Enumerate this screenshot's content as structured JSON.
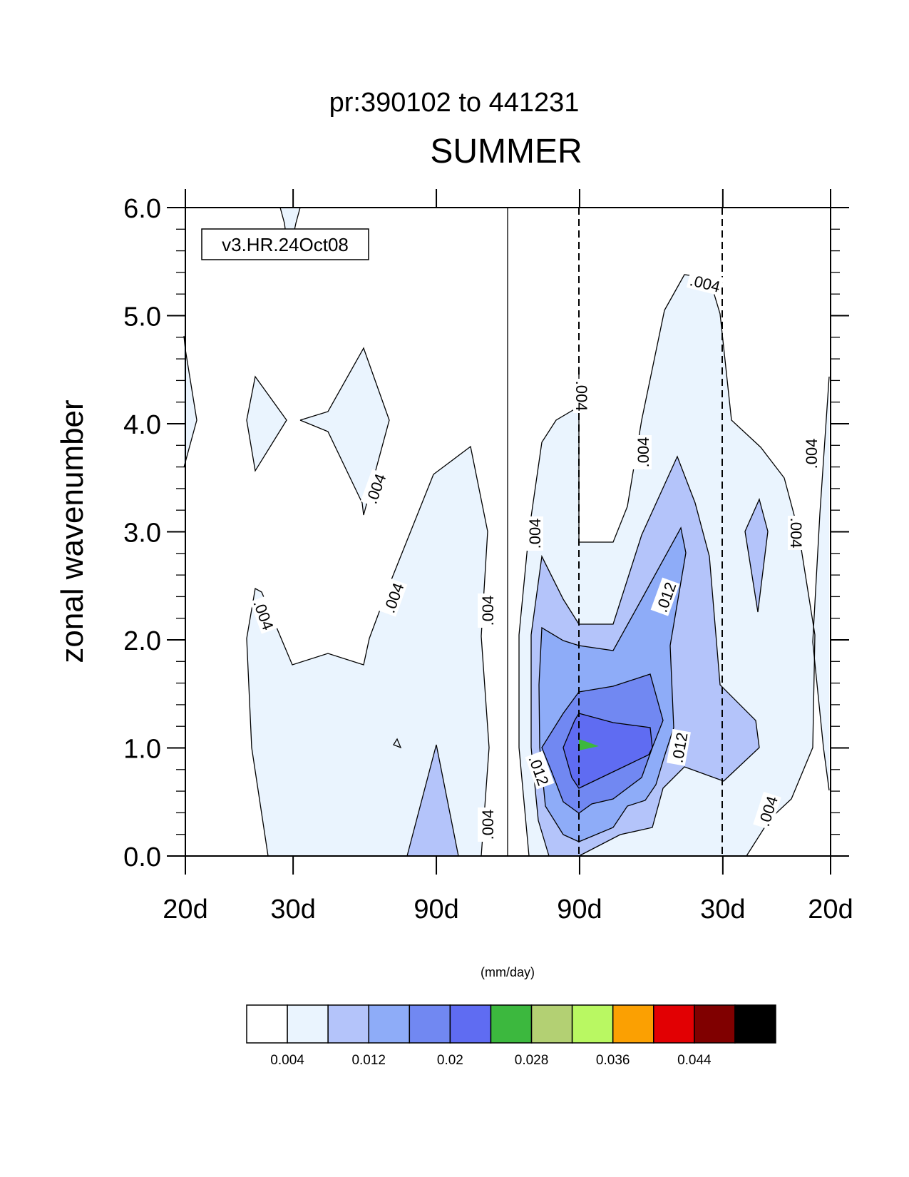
{
  "chart_data": {
    "type": "heatmap",
    "subtitle": "pr:390102 to 441231",
    "title": "SUMMER",
    "ylabel": "zonal wavenumber",
    "xlabel": "",
    "units": "(mm/day)",
    "run_label": "v3.HR.24Oct08",
    "ylim": [
      0,
      6
    ],
    "y_ticks": [
      "0.0",
      "1.0",
      "2.0",
      "3.0",
      "4.0",
      "5.0",
      "6.0"
    ],
    "x_ticks": [
      "20d",
      "30d",
      "90d",
      "90d",
      "30d",
      "20d"
    ],
    "x_frequency_range": [
      -0.05,
      0.05
    ],
    "x_tick_frequencies": [
      -0.05,
      -0.0333,
      -0.0111,
      0.0111,
      0.0333,
      0.05
    ],
    "contour_label": [
      ".004",
      ".012"
    ],
    "colorbar": {
      "levels": [
        "0.004",
        "0.012",
        "0.02",
        "0.028",
        "0.036",
        "0.044"
      ],
      "colors": [
        "#ffffff",
        "#eaf4fe",
        "#b4c4fa",
        "#8eacf8",
        "#7188f2",
        "#5f6cf2",
        "#3cb83e",
        "#b3d073",
        "#b9f862",
        "#fba002",
        "#e20003",
        "#800000",
        "#000000"
      ]
    }
  }
}
